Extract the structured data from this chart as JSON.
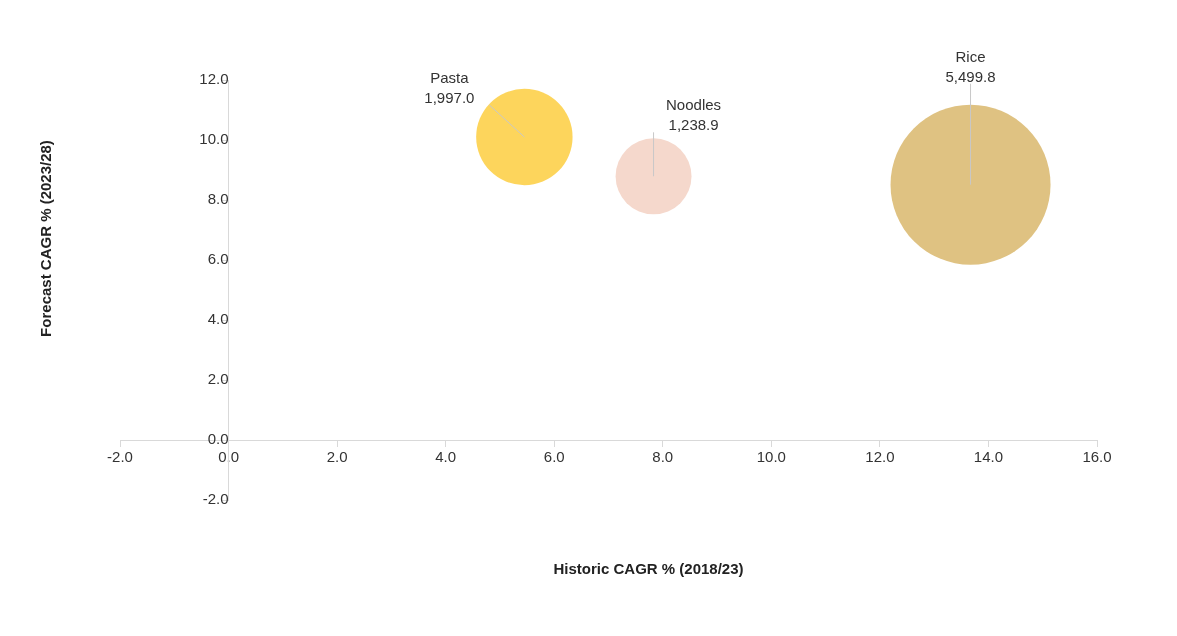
{
  "chart_data": {
    "type": "bubble",
    "xlabel": "Historic CAGR % (2018/23)",
    "ylabel": "Forecast CAGR % (2023/28)",
    "xlim": [
      -2,
      16
    ],
    "xticks": [
      {
        "value": -2,
        "label": "-2.0"
      },
      {
        "value": 0,
        "label": "0.0"
      },
      {
        "value": 2,
        "label": "2.0"
      },
      {
        "value": 4,
        "label": "4.0"
      },
      {
        "value": 6,
        "label": "6.0"
      },
      {
        "value": 8,
        "label": "8.0"
      },
      {
        "value": 10,
        "label": "10.0"
      },
      {
        "value": 12,
        "label": "12.0"
      },
      {
        "value": 14,
        "label": "14.0"
      },
      {
        "value": 16,
        "label": "16.0"
      }
    ],
    "ylim": [
      -2,
      12
    ],
    "yticks": [
      {
        "value": -2,
        "label": "-2.0"
      },
      {
        "value": 0,
        "label": "0.0"
      },
      {
        "value": 2,
        "label": "2.0"
      },
      {
        "value": 4,
        "label": "4.0"
      },
      {
        "value": 6,
        "label": "6.0"
      },
      {
        "value": 8,
        "label": "8.0"
      },
      {
        "value": 10,
        "label": "10.0"
      },
      {
        "value": 12,
        "label": "12.0"
      }
    ],
    "series": [
      {
        "name": "Pasta",
        "color": "#fdd55c",
        "x": [
          5.45
        ],
        "values": [
          10.1
        ],
        "sizes": [
          1997.0
        ],
        "value_labels": [
          "1,997.0"
        ]
      },
      {
        "name": "Noodles",
        "color": "#f5d8cc",
        "x": [
          7.83
        ],
        "values": [
          8.79
        ],
        "sizes": [
          1238.9
        ],
        "value_labels": [
          "1,238.9"
        ]
      },
      {
        "name": "Rice",
        "color": "#dfc282",
        "x": [
          13.67
        ],
        "values": [
          8.51
        ],
        "sizes": [
          5499.8
        ],
        "value_labels": [
          "5,499.8"
        ]
      }
    ],
    "legend": false
  }
}
